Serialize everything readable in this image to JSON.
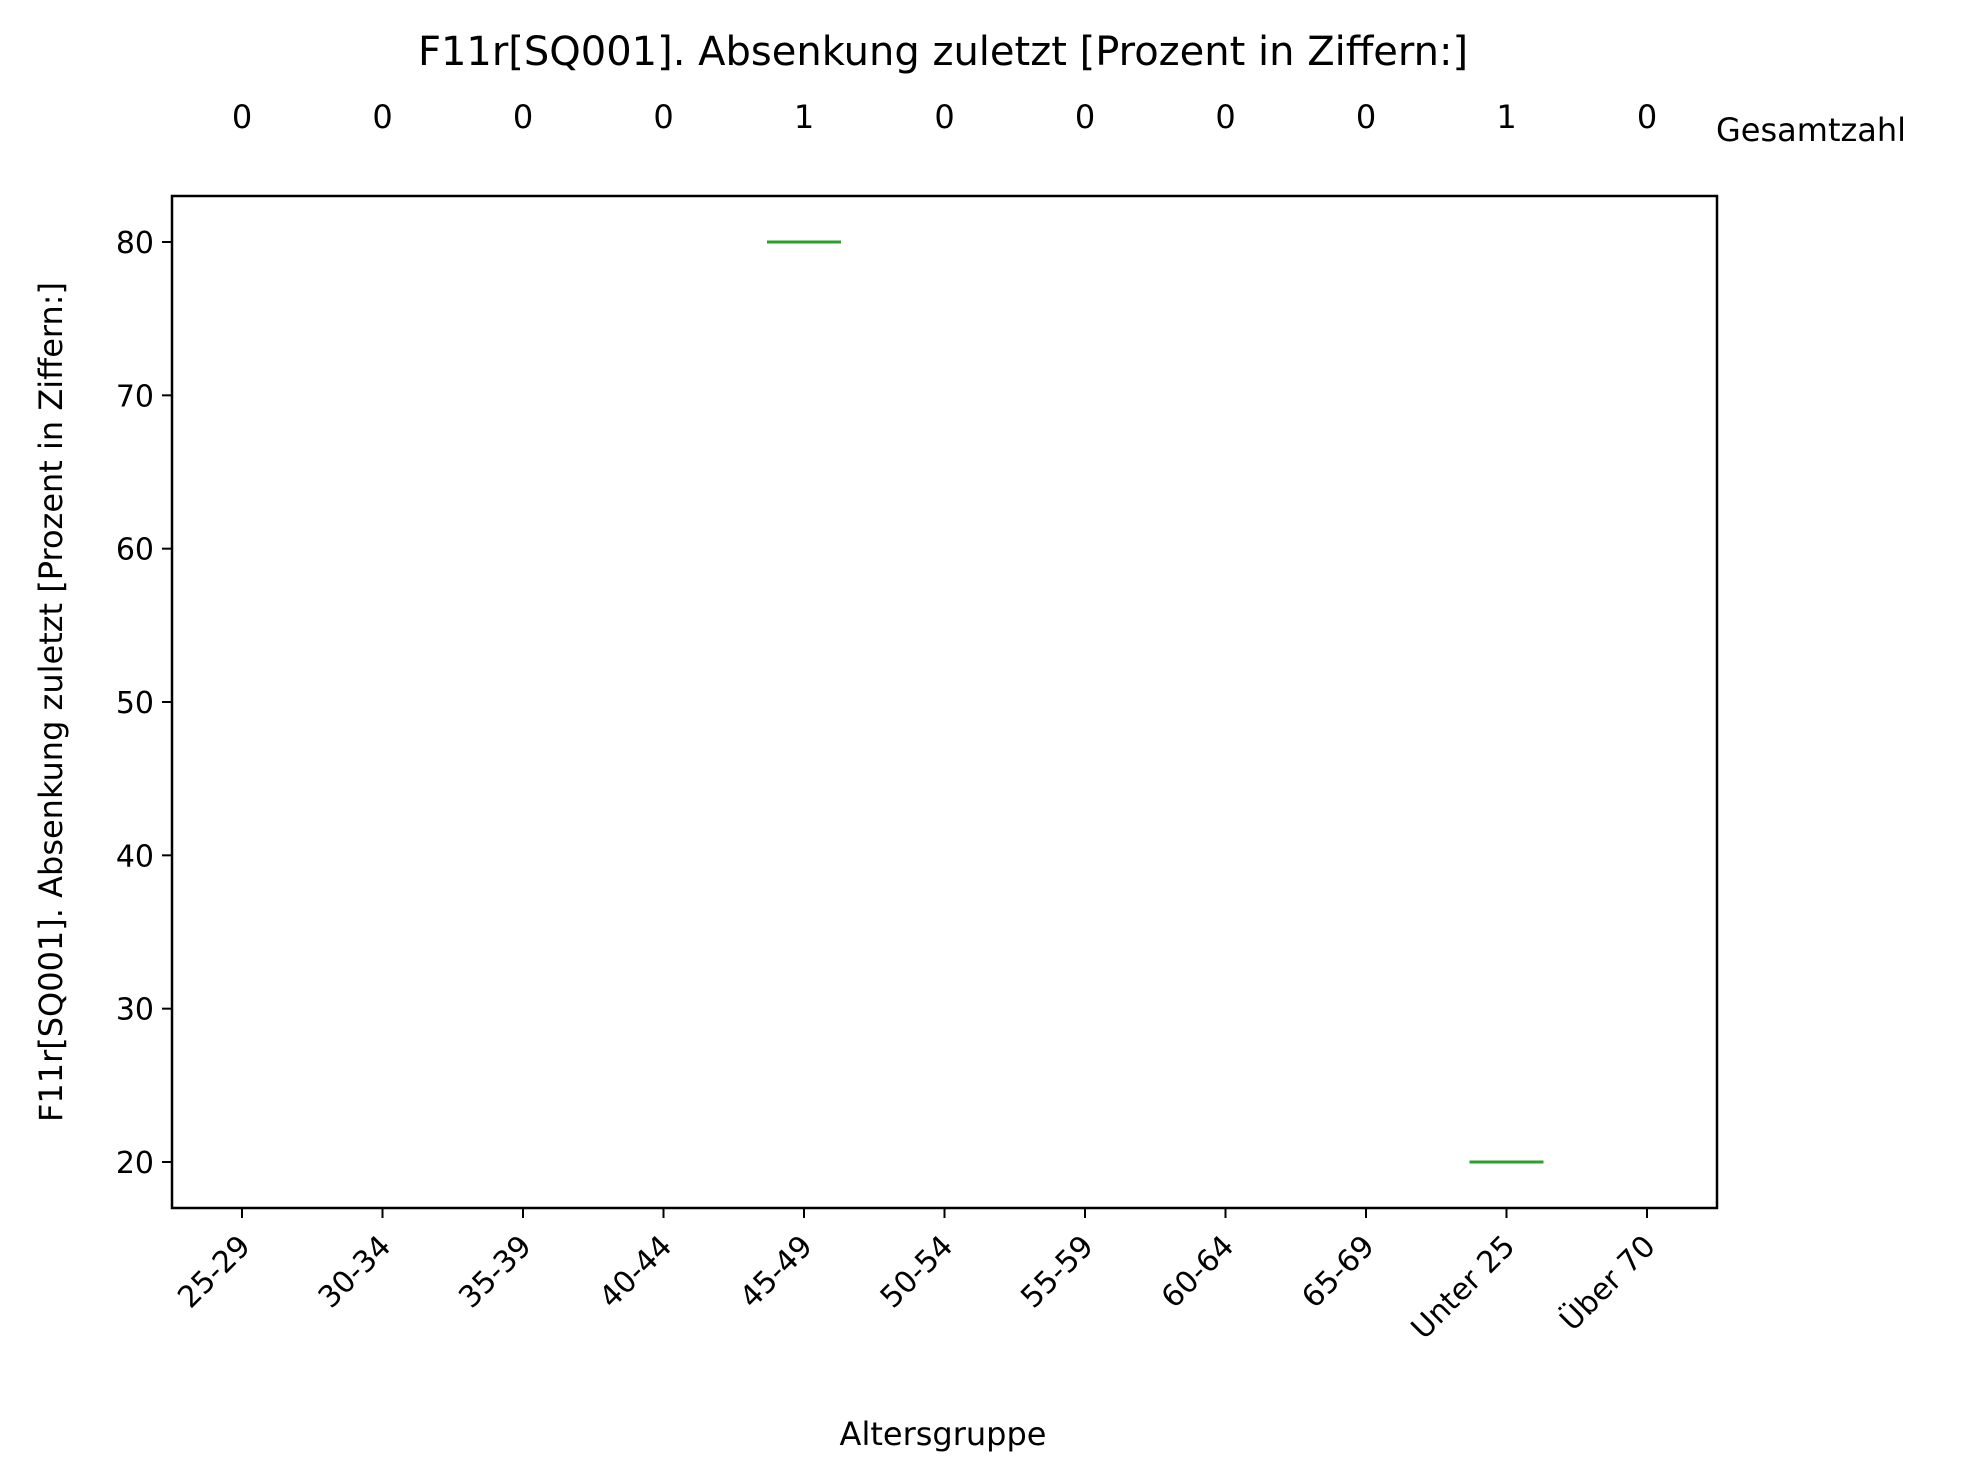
{
  "chart_data": {
    "type": "box",
    "title": "F11r[SQ001]. Absenkung zuletzt [Prozent in Ziffern:]",
    "xlabel": "Altersgruppe",
    "ylabel": "F11r[SQ001]. Absenkung zuletzt [Prozent in Ziffern:]",
    "ylim": [
      17,
      83
    ],
    "yticks": [
      20,
      30,
      40,
      50,
      60,
      70,
      80
    ],
    "grid": false,
    "categories": [
      "25-29",
      "30-34",
      "35-39",
      "40-44",
      "45-49",
      "50-54",
      "55-59",
      "60-64",
      "65-69",
      "Unter 25",
      "Über 70"
    ],
    "counts": [
      0,
      0,
      0,
      0,
      1,
      0,
      0,
      0,
      0,
      1,
      0
    ],
    "counts_label": "Gesamtzahl",
    "medians": [
      null,
      null,
      null,
      null,
      80,
      null,
      null,
      null,
      null,
      20,
      null
    ],
    "median_color": "#2ca02c"
  }
}
